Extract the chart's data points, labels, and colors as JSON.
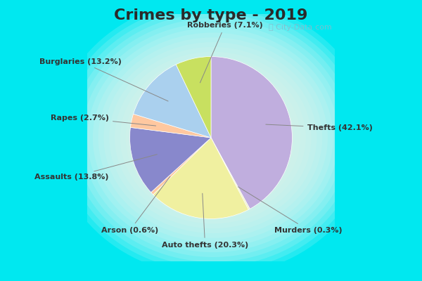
{
  "title": "Crimes by type - 2019",
  "labels": [
    "Thefts",
    "Murders",
    "Auto thefts",
    "Arson",
    "Assaults",
    "Rapes",
    "Burglaries",
    "Robberies"
  ],
  "values": [
    42.1,
    0.3,
    20.3,
    0.6,
    13.8,
    2.7,
    13.2,
    7.1
  ],
  "colors": [
    "#b8a8d8",
    "#f5f5c8",
    "#eeeea0",
    "#ffccaa",
    "#8888cc",
    "#ffccaa",
    "#a8cce8",
    "#b8d870"
  ],
  "bg_cyan": "#00e8f0",
  "bg_inner_light": "#c8ecd8",
  "bg_inner_lighter": "#e0f5e8",
  "title_fontsize": 16,
  "title_color": "#2a2a2a",
  "label_fontsize": 8,
  "watermark": "ⓘ City-Data.com",
  "watermark_color": "#88bbcc"
}
